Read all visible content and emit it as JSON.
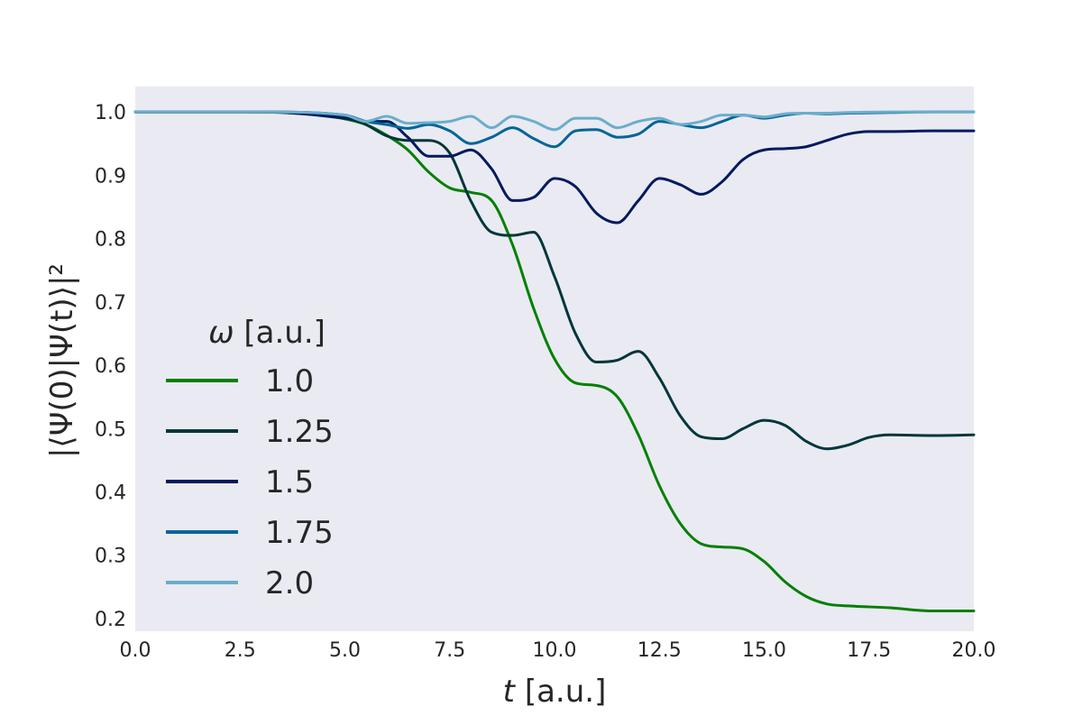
{
  "chart_data": {
    "type": "line",
    "xlabel": {
      "var": "t",
      "unit": "[a.u.]"
    },
    "ylabel": "|⟨Ψ(0)|Ψ(t)⟩|²",
    "xlim": [
      0,
      20
    ],
    "ylim": [
      0.18,
      1.04
    ],
    "xticks": [
      0,
      2.5,
      5,
      7.5,
      10,
      12.5,
      15,
      17.5,
      20
    ],
    "xtick_labels": [
      "0.0",
      "2.5",
      "5.0",
      "7.5",
      "10.0",
      "12.5",
      "15.0",
      "17.5",
      "20.0"
    ],
    "yticks": [
      0.2,
      0.3,
      0.4,
      0.5,
      0.6,
      0.7,
      0.8,
      0.9,
      1.0
    ],
    "ytick_labels": [
      "0.2",
      "0.3",
      "0.4",
      "0.5",
      "0.6",
      "0.7",
      "0.8",
      "0.9",
      "1.0"
    ],
    "grid": false,
    "background": "#eaeaf2",
    "legend": {
      "title_var": "ω",
      "title_unit": "[a.u.]",
      "placement": "center-left"
    },
    "series": [
      {
        "name": "1.0",
        "color": "#008000",
        "x": [
          0,
          2.5,
          4.5,
          5.5,
          6,
          6.5,
          7,
          7.5,
          8,
          8.5,
          9,
          9.5,
          10,
          10.5,
          11,
          11.5,
          12,
          12.5,
          13,
          13.5,
          14,
          14.5,
          15,
          15.5,
          16,
          16.5,
          17,
          18,
          19,
          20
        ],
        "y": [
          1.0,
          1.0,
          0.994,
          0.98,
          0.963,
          0.94,
          0.905,
          0.88,
          0.873,
          0.86,
          0.79,
          0.69,
          0.61,
          0.572,
          0.568,
          0.55,
          0.49,
          0.41,
          0.35,
          0.318,
          0.313,
          0.31,
          0.29,
          0.258,
          0.235,
          0.223,
          0.22,
          0.217,
          0.212,
          0.212
        ]
      },
      {
        "name": "1.25",
        "color": "#00363a",
        "x": [
          0,
          3,
          5,
          5.5,
          6,
          6.5,
          7,
          7.5,
          8,
          8.5,
          9,
          9.5,
          10,
          10.5,
          11,
          11.5,
          12,
          12.5,
          13,
          13.5,
          14,
          14.5,
          15,
          15.5,
          16,
          16.5,
          17,
          17.5,
          18,
          19,
          20
        ],
        "y": [
          1.0,
          1.0,
          0.992,
          0.98,
          0.962,
          0.955,
          0.955,
          0.935,
          0.86,
          0.81,
          0.805,
          0.81,
          0.74,
          0.65,
          0.605,
          0.608,
          0.622,
          0.58,
          0.52,
          0.487,
          0.484,
          0.5,
          0.513,
          0.505,
          0.48,
          0.468,
          0.474,
          0.486,
          0.49,
          0.489,
          0.49
        ]
      },
      {
        "name": "1.5",
        "color": "#001a5e",
        "x": [
          0,
          3,
          5,
          5.5,
          6,
          6.5,
          7,
          7.5,
          8,
          8.5,
          9,
          9.5,
          10,
          10.5,
          11,
          11.5,
          12,
          12.5,
          13,
          13.5,
          14,
          14.5,
          15,
          15.5,
          16,
          16.5,
          17,
          17.5,
          18,
          19,
          20
        ],
        "y": [
          1.0,
          1.0,
          0.99,
          0.985,
          0.985,
          0.96,
          0.93,
          0.93,
          0.94,
          0.91,
          0.86,
          0.865,
          0.895,
          0.882,
          0.84,
          0.825,
          0.86,
          0.895,
          0.885,
          0.87,
          0.89,
          0.925,
          0.94,
          0.942,
          0.945,
          0.955,
          0.965,
          0.969,
          0.969,
          0.97,
          0.97
        ]
      },
      {
        "name": "1.75",
        "color": "#006599",
        "x": [
          0,
          3,
          5,
          5.5,
          6,
          6.5,
          7,
          7.5,
          8,
          8.5,
          9,
          9.5,
          10,
          10.5,
          11,
          11.5,
          12,
          12.5,
          13,
          13.5,
          14,
          14.5,
          15,
          15.5,
          16,
          16.5,
          17,
          18,
          19,
          20
        ],
        "y": [
          1.0,
          1.0,
          0.995,
          0.985,
          0.98,
          0.974,
          0.98,
          0.97,
          0.95,
          0.96,
          0.975,
          0.958,
          0.945,
          0.97,
          0.972,
          0.96,
          0.965,
          0.985,
          0.98,
          0.975,
          0.985,
          0.995,
          0.99,
          0.995,
          0.998,
          0.997,
          0.998,
          0.999,
          1.0,
          1.0
        ]
      },
      {
        "name": "2.0",
        "color": "#6aaecc",
        "x": [
          0,
          3,
          5,
          5.5,
          6,
          6.5,
          7,
          7.5,
          8,
          8.5,
          9,
          9.5,
          10,
          10.5,
          11,
          11.5,
          12,
          12.5,
          13,
          13.5,
          14,
          14.5,
          15,
          15.5,
          16,
          16.5,
          17,
          18,
          19,
          20
        ],
        "y": [
          1.0,
          1.0,
          0.995,
          0.985,
          0.993,
          0.982,
          0.983,
          0.985,
          0.993,
          0.975,
          0.993,
          0.985,
          0.972,
          0.99,
          0.99,
          0.975,
          0.985,
          0.99,
          0.98,
          0.985,
          0.995,
          0.995,
          0.992,
          0.997,
          0.998,
          0.998,
          0.999,
          1.0,
          1.0,
          1.0
        ]
      }
    ]
  }
}
